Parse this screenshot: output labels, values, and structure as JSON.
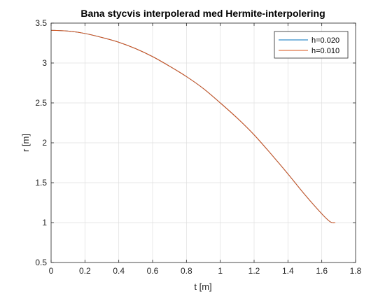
{
  "chart_data": {
    "type": "line",
    "title": "Bana stycvis interpolerad med Hermite-interpolering",
    "xlabel": "t [m]",
    "ylabel": "r [m]",
    "xlim": [
      0,
      1.8
    ],
    "ylim": [
      0.5,
      3.5
    ],
    "xticks": [
      "0",
      "0.2",
      "0.4",
      "0.6",
      "0.8",
      "1",
      "1.2",
      "1.4",
      "1.6",
      "1.8"
    ],
    "yticks": [
      "0.5",
      "1",
      "1.5",
      "2",
      "2.5",
      "3",
      "3.5"
    ],
    "grid": true,
    "legend_position": "top-right",
    "series": [
      {
        "name": "h=0.020",
        "color": "#0072BD",
        "x": [
          0,
          0.1,
          0.2,
          0.3,
          0.4,
          0.5,
          0.6,
          0.7,
          0.8,
          0.9,
          1.0,
          1.1,
          1.2,
          1.3,
          1.4,
          1.5,
          1.6,
          1.65,
          1.68
        ],
        "y": [
          3.41,
          3.4,
          3.37,
          3.32,
          3.26,
          3.18,
          3.08,
          2.96,
          2.83,
          2.68,
          2.5,
          2.31,
          2.1,
          1.86,
          1.61,
          1.35,
          1.11,
          1.01,
          1.0
        ]
      },
      {
        "name": "h=0.010",
        "color": "#D95319",
        "x": [
          0,
          0.1,
          0.2,
          0.3,
          0.4,
          0.5,
          0.6,
          0.7,
          0.8,
          0.9,
          1.0,
          1.1,
          1.2,
          1.3,
          1.4,
          1.5,
          1.6,
          1.65,
          1.68
        ],
        "y": [
          3.41,
          3.4,
          3.37,
          3.32,
          3.26,
          3.18,
          3.08,
          2.96,
          2.83,
          2.68,
          2.5,
          2.31,
          2.1,
          1.86,
          1.61,
          1.35,
          1.11,
          1.01,
          1.0
        ]
      }
    ]
  }
}
